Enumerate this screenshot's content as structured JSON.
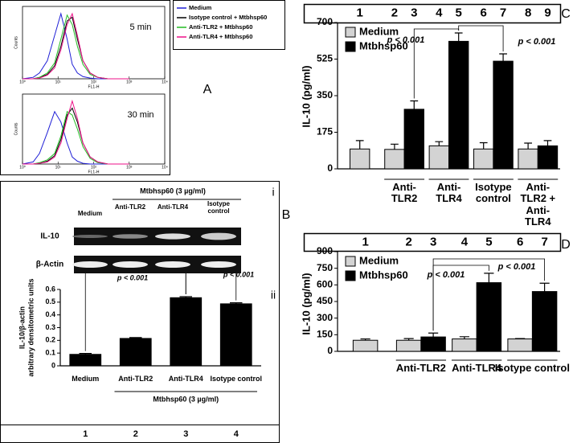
{
  "chart_data": [
    {
      "type": "line",
      "panel_label": "A",
      "xscale": "log",
      "series": [
        {
          "name": "Medium",
          "color": "#1f1fd6"
        },
        {
          "name": "Isotype control + Mtbhsp60",
          "color": "#000000"
        },
        {
          "name": "Anti-TLR2 + Mtbhsp60",
          "color": "#22bb22"
        },
        {
          "name": "Anti-TLR4 + Mtbhsp60",
          "color": "#ee1188"
        }
      ],
      "plots": [
        {
          "annotation": "5 min",
          "xlabel": "FL1-H",
          "ylabel": "Counts",
          "xlim": [
            1,
            10000
          ],
          "ylim": [
            0,
            100
          ],
          "xticks": [
            {
              "value": 1,
              "label": "10⁰"
            },
            {
              "value": 10,
              "label": "10¹"
            },
            {
              "value": 100,
              "label": "10²"
            },
            {
              "value": 1000,
              "label": "10³"
            },
            {
              "value": 10000,
              "label": "10⁴"
            }
          ],
          "x": [
            1,
            2,
            3,
            5,
            8,
            12,
            18,
            25,
            35,
            50,
            80,
            130,
            250,
            1000
          ],
          "series": [
            {
              "values": [
                0,
                2,
                8,
                25,
                60,
                90,
                55,
                20,
                8,
                3,
                1,
                0,
                0,
                0
              ]
            },
            {
              "values": [
                0,
                0,
                2,
                6,
                18,
                45,
                80,
                85,
                55,
                25,
                8,
                2,
                0,
                0
              ]
            },
            {
              "values": [
                0,
                0,
                2,
                8,
                22,
                55,
                88,
                75,
                45,
                20,
                6,
                2,
                0,
                0
              ]
            },
            {
              "values": [
                0,
                0,
                1,
                5,
                15,
                40,
                75,
                90,
                60,
                25,
                8,
                2,
                0,
                0
              ]
            }
          ]
        },
        {
          "annotation": "30 min",
          "xlabel": "FL1-H",
          "ylabel": "Counts",
          "xlim": [
            1,
            10000
          ],
          "ylim": [
            0,
            100
          ],
          "xticks": [
            {
              "value": 1,
              "label": "10⁰"
            },
            {
              "value": 10,
              "label": "10¹"
            },
            {
              "value": 100,
              "label": "10²"
            },
            {
              "value": 1000,
              "label": "10³"
            },
            {
              "value": 10000,
              "label": "10⁴"
            }
          ],
          "x": [
            1,
            2,
            3,
            5,
            8,
            12,
            18,
            25,
            35,
            50,
            80,
            130,
            250,
            1000
          ],
          "series": [
            {
              "values": [
                0,
                3,
                15,
                45,
                75,
                60,
                30,
                10,
                4,
                1,
                0,
                0,
                0,
                0
              ]
            },
            {
              "values": [
                0,
                0,
                1,
                4,
                12,
                35,
                70,
                80,
                60,
                30,
                10,
                3,
                0,
                0
              ]
            },
            {
              "values": [
                0,
                0,
                2,
                6,
                15,
                40,
                75,
                70,
                50,
                25,
                8,
                2,
                0,
                0
              ]
            },
            {
              "values": [
                0,
                0,
                1,
                3,
                10,
                30,
                65,
                90,
                65,
                30,
                10,
                3,
                0,
                0
              ]
            }
          ]
        }
      ]
    },
    {
      "type": "bar",
      "panel_label": "B",
      "sublabels": [
        "i",
        "ii"
      ],
      "gel": {
        "treatment_label": "Mtbhsp60 (3 µg/ml)",
        "lanes": [
          "Medium",
          "Anti-TLR2",
          "Anti-TLR4",
          "Isotype control"
        ],
        "rows": [
          "IL-10",
          "β-Actin"
        ]
      },
      "ylabel": [
        "IL-10/β-actin",
        "arbitrary densitometric units"
      ],
      "categories": [
        "Medium",
        "Anti-TLR2",
        "Anti-TLR4",
        "Isotype control"
      ],
      "values": [
        0.09,
        0.215,
        0.535,
        0.487
      ],
      "errors": [
        0.007,
        0.007,
        0.008,
        0.008
      ],
      "color": "#000000",
      "ylim": [
        0,
        0.6
      ],
      "yticks": [
        0,
        0.1,
        0.2,
        0.3,
        0.4,
        0.5,
        0.6
      ],
      "group_label": "Mtbhsp60 (3 µg/ml)",
      "lanes": [
        1,
        2,
        3,
        4
      ],
      "annotations": [
        "p < 0.001",
        "p < 0.001"
      ]
    },
    {
      "type": "bar",
      "panel_label": "C",
      "ylabel": "IL-10 (pg/ml)",
      "categories": [
        null,
        "Anti-TLR2",
        "Anti-TLR4",
        "Isotype control",
        "Anti-TLR2 + Anti-TLR4"
      ],
      "series": [
        {
          "name": "Medium",
          "color": "#d3d3d3",
          "values": [
            95,
            93,
            110,
            95,
            95
          ],
          "errors": [
            40,
            25,
            20,
            30,
            28
          ]
        },
        {
          "name": "Mtbhsp60",
          "color": "#000000",
          "values": [
            null,
            285,
            610,
            515,
            110
          ],
          "errors": [
            null,
            40,
            40,
            35,
            25
          ]
        }
      ],
      "ylim": [
        0,
        700
      ],
      "yticks": [
        0,
        175,
        350,
        525,
        700
      ],
      "lanes": [
        1,
        2,
        3,
        4,
        5,
        6,
        7,
        8,
        9
      ],
      "annotations": [
        "p < 0.001",
        "p < 0.001"
      ]
    },
    {
      "type": "bar",
      "panel_label": "D",
      "ylabel": "IL-10 (pg/ml)",
      "categories": [
        null,
        "Anti-TLR2",
        "Anti-TLR4",
        "Isotype control"
      ],
      "series": [
        {
          "name": "Medium",
          "color": "#d3d3d3",
          "values": [
            100,
            100,
            112,
            112
          ],
          "errors": [
            12,
            15,
            20,
            3
          ]
        },
        {
          "name": "Mtbhsp60",
          "color": "#000000",
          "values": [
            null,
            130,
            620,
            540
          ],
          "errors": [
            null,
            35,
            85,
            75
          ]
        }
      ],
      "ylim": [
        0,
        900
      ],
      "yticks": [
        0,
        150,
        300,
        450,
        600,
        750,
        900
      ],
      "lanes": [
        1,
        2,
        3,
        4,
        5,
        6,
        7
      ],
      "annotations": [
        "p < 0.001",
        "p < 0.001"
      ]
    }
  ]
}
